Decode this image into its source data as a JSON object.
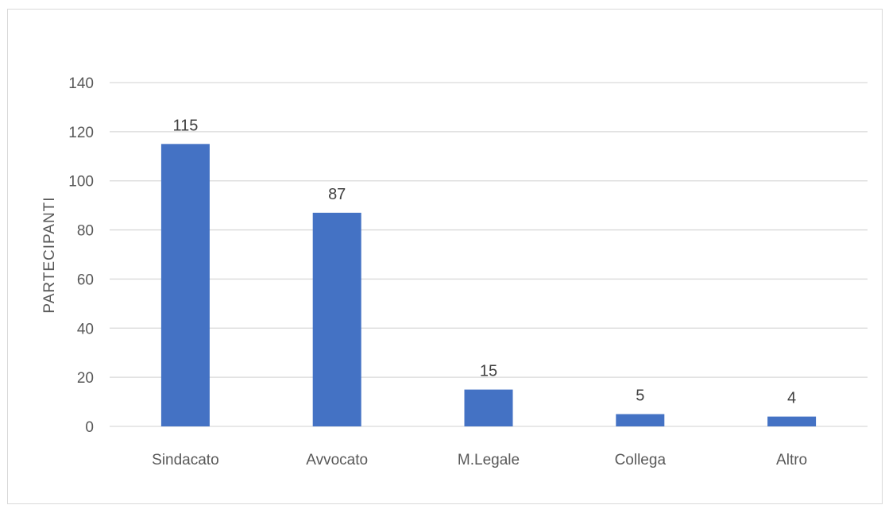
{
  "chart_data": {
    "type": "bar",
    "title": "",
    "xlabel": "",
    "ylabel": "PARTECIPANTI",
    "categories": [
      "Sindacato",
      "Avvocato",
      "M.Legale",
      "Collega",
      "Altro"
    ],
    "values": [
      115,
      87,
      15,
      5,
      4
    ],
    "data_labels": [
      "115",
      "87",
      "15",
      "5",
      "4"
    ],
    "ylim": [
      0,
      140
    ],
    "yticks": [
      0,
      20,
      40,
      60,
      80,
      100,
      120,
      140
    ],
    "grid": true,
    "legend": "none",
    "colors": {
      "bar": "#4472c4",
      "grid": "#d9d9d9",
      "axis_text": "#595959",
      "label_text": "#404040"
    }
  }
}
